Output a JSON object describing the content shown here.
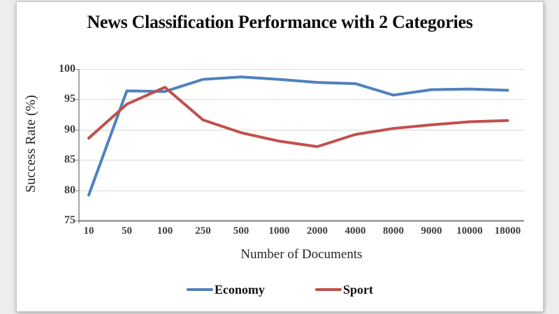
{
  "slide": {
    "title": "News Classification Performance with 2 Categories"
  },
  "chart_data": {
    "type": "line",
    "title": "News Classification Performance with 2 Categories",
    "xlabel": "Number of Documents",
    "ylabel": "Success Rate (%)",
    "categories": [
      "10",
      "50",
      "100",
      "250",
      "500",
      "1000",
      "2000",
      "4000",
      "8000",
      "9000",
      "10000",
      "18000"
    ],
    "series": [
      {
        "name": "Economy",
        "color": "#4F81BD",
        "values": [
          79.2,
          96.4,
          96.3,
          98.3,
          98.7,
          98.3,
          97.8,
          97.6,
          95.7,
          96.6,
          96.7,
          96.5
        ]
      },
      {
        "name": "Sport",
        "color": "#C0504D",
        "values": [
          88.6,
          94.2,
          97.0,
          91.6,
          89.5,
          88.1,
          87.2,
          89.2,
          90.2,
          90.8,
          91.3,
          91.5
        ]
      }
    ],
    "ylim": [
      75,
      100
    ],
    "yticks": [
      75,
      80,
      85,
      90,
      95,
      100
    ],
    "grid": true,
    "legend_position": "bottom",
    "colors": {
      "gridline": "#d9d9d9",
      "axis": "#7f7f7f",
      "tick_text": "#3d3d3d"
    }
  }
}
